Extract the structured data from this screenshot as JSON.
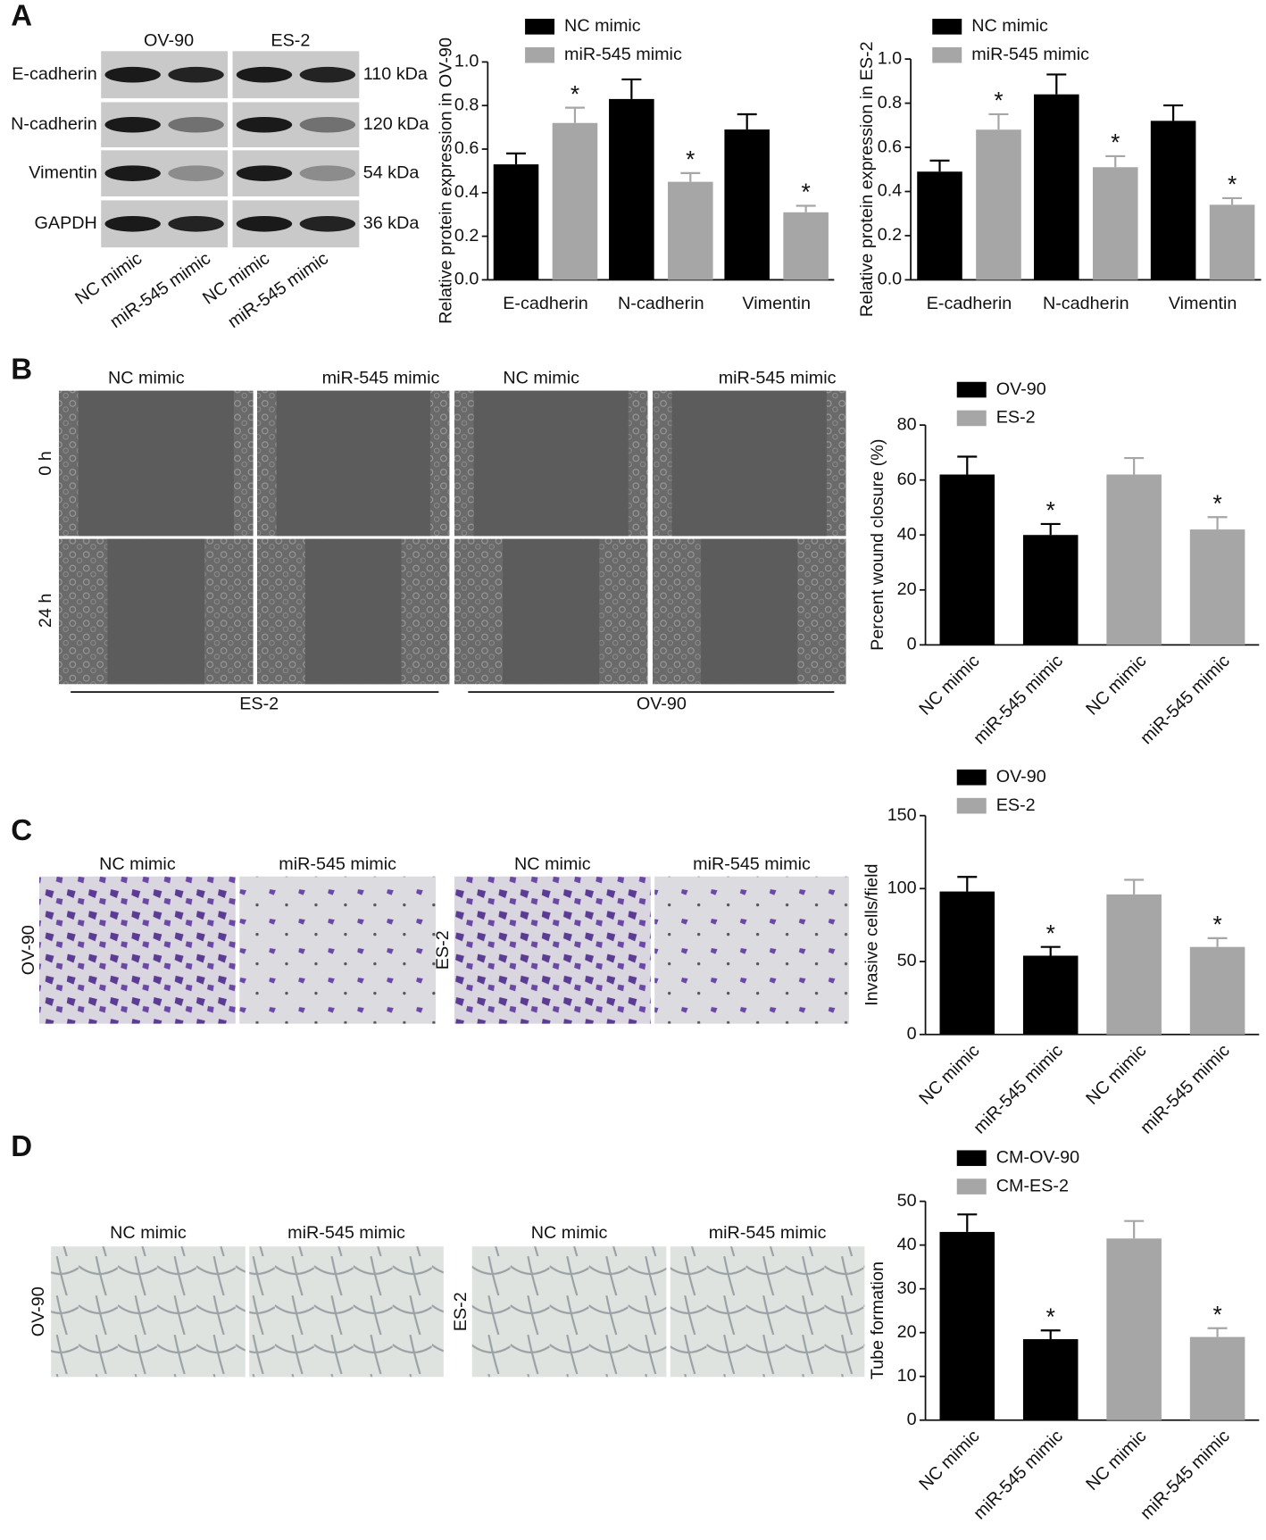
{
  "panel_labels": [
    "A",
    "B",
    "C",
    "D"
  ],
  "blot": {
    "columns": [
      "OV-90",
      "ES-2"
    ],
    "rows": [
      {
        "label": "E-cadherin",
        "size": "110 kDa"
      },
      {
        "label": "N-cadherin",
        "size": "120 kDa"
      },
      {
        "label": "Vimentin",
        "size": "54 kDa"
      },
      {
        "label": "GAPDH",
        "size": "36 kDa"
      }
    ],
    "lanes": [
      "NC mimic",
      "miR-545 mimic",
      "NC mimic",
      "miR-545 mimic"
    ]
  },
  "wound": {
    "columns": [
      "NC mimic",
      "miR-545 mimic",
      "NC mimic",
      "miR-545 mimic"
    ],
    "rows": [
      "0 h",
      "24 h"
    ],
    "groups": [
      "ES-2",
      "OV-90"
    ]
  },
  "invasion": {
    "groups": [
      {
        "label": "OV-90",
        "columns": [
          "NC mimic",
          "miR-545 mimic"
        ]
      },
      {
        "label": "ES-2",
        "columns": [
          "NC mimic",
          "miR-545 mimic"
        ]
      }
    ]
  },
  "tube": {
    "groups": [
      {
        "label": "OV-90",
        "columns": [
          "NC mimic",
          "miR-545 mimic"
        ]
      },
      {
        "label": "ES-2",
        "columns": [
          "NC mimic",
          "miR-545 mimic"
        ]
      }
    ]
  },
  "chart_data": [
    {
      "type": "bar",
      "grouped": true,
      "legend": "top-left",
      "ylabel": "Relative protein expression in OV-90",
      "categories": [
        "E-cadherin",
        "N-cadherin",
        "Vimentin"
      ],
      "series": [
        {
          "name": "NC mimic",
          "color": "#000000",
          "values": [
            0.53,
            0.83,
            0.69
          ],
          "errors": [
            0.05,
            0.09,
            0.07
          ]
        },
        {
          "name": "miR-545 mimic",
          "color": "#a6a6a6",
          "values": [
            0.72,
            0.45,
            0.31
          ],
          "errors": [
            0.07,
            0.04,
            0.03
          ],
          "annotations": [
            "*",
            "*",
            "*"
          ]
        }
      ],
      "ylim": [
        0,
        1.0
      ],
      "yticks": [
        {
          "value": 0,
          "label": "0.0"
        },
        0.2,
        0.4,
        0.6,
        0.8,
        {
          "value": 1.0,
          "label": "1.0"
        }
      ]
    },
    {
      "type": "bar",
      "grouped": true,
      "legend": "top-left",
      "ylabel": "Relative protein expression in ES-2",
      "categories": [
        "E-cadherin",
        "N-cadherin",
        "Vimentin"
      ],
      "series": [
        {
          "name": "NC mimic",
          "color": "#000000",
          "values": [
            0.49,
            0.84,
            0.72
          ],
          "errors": [
            0.05,
            0.09,
            0.07
          ]
        },
        {
          "name": "miR-545 mimic",
          "color": "#a6a6a6",
          "values": [
            0.68,
            0.51,
            0.34
          ],
          "errors": [
            0.07,
            0.05,
            0.03
          ],
          "annotations": [
            "*",
            "*",
            "*"
          ]
        }
      ],
      "ylim": [
        0,
        1.0
      ],
      "yticks": [
        {
          "value": 0,
          "label": "0.0"
        },
        0.2,
        0.4,
        0.6,
        0.8,
        {
          "value": 1.0,
          "label": "1.0"
        }
      ]
    },
    {
      "type": "bar",
      "grouped": false,
      "legend": "top-left",
      "ylabel": "Percent wound closure (%)",
      "categories": [
        "NC mimic",
        "miR-545 mimic",
        "NC mimic",
        "miR-545 mimic"
      ],
      "series": [
        {
          "name": "OV-90",
          "color": "#000000",
          "values": [
            62,
            40,
            null,
            null
          ],
          "errors": [
            6.5,
            4,
            null,
            null
          ],
          "annotations": [
            null,
            "*",
            null,
            null
          ]
        },
        {
          "name": "ES-2",
          "color": "#a6a6a6",
          "values": [
            null,
            null,
            62,
            42
          ],
          "errors": [
            null,
            null,
            6,
            4.5
          ],
          "annotations": [
            null,
            null,
            null,
            "*"
          ]
        }
      ],
      "ylim": [
        0,
        80
      ],
      "yticks": [
        0,
        20,
        40,
        60,
        80
      ]
    },
    {
      "type": "bar",
      "grouped": false,
      "legend": "top-left",
      "ylabel": "Invasive cells/field",
      "categories": [
        "NC mimic",
        "miR-545 mimic",
        "NC mimic",
        "miR-545 mimic"
      ],
      "series": [
        {
          "name": "OV-90",
          "color": "#000000",
          "values": [
            98,
            54,
            null,
            null
          ],
          "errors": [
            10,
            6,
            null,
            null
          ],
          "annotations": [
            null,
            "*",
            null,
            null
          ]
        },
        {
          "name": "ES-2",
          "color": "#a6a6a6",
          "values": [
            null,
            null,
            96,
            60
          ],
          "errors": [
            null,
            null,
            10,
            6
          ],
          "annotations": [
            null,
            null,
            null,
            "*"
          ]
        }
      ],
      "ylim": [
        0,
        150
      ],
      "yticks": [
        0,
        50,
        100,
        150
      ]
    },
    {
      "type": "bar",
      "grouped": false,
      "legend": "top-left",
      "ylabel": "Tube formation",
      "categories": [
        "NC mimic",
        "miR-545 mimic",
        "NC mimic",
        "miR-545 mimic"
      ],
      "series": [
        {
          "name": "CM-OV-90",
          "color": "#000000",
          "values": [
            43,
            18.5,
            null,
            null
          ],
          "errors": [
            4,
            2,
            null,
            null
          ],
          "annotations": [
            null,
            "*",
            null,
            null
          ]
        },
        {
          "name": "CM-ES-2",
          "color": "#a6a6a6",
          "values": [
            null,
            null,
            41.5,
            19
          ],
          "errors": [
            null,
            null,
            4,
            2
          ],
          "annotations": [
            null,
            null,
            null,
            "*"
          ]
        }
      ],
      "ylim": [
        0,
        50
      ],
      "yticks": [
        0,
        10,
        20,
        30,
        40,
        50
      ]
    }
  ]
}
